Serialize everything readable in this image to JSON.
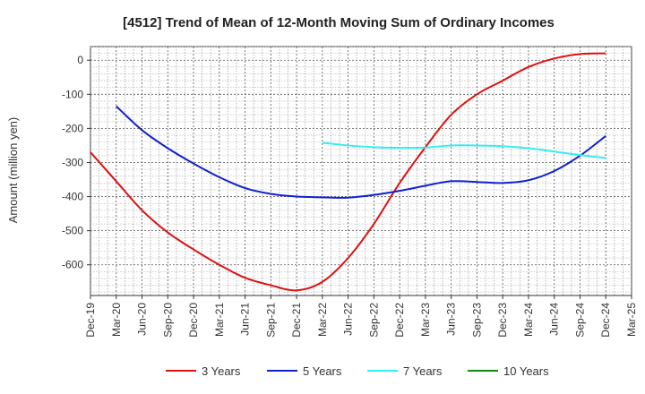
{
  "chart_data": {
    "type": "line",
    "title": "[4512]  Trend of Mean of 12-Month Moving Sum of Ordinary Incomes",
    "xlabel": "",
    "ylabel": "Amount (million yen)",
    "ylim": [
      -690,
      40
    ],
    "yticks": [
      0,
      -100,
      -200,
      -300,
      -400,
      -500,
      -600
    ],
    "categories": [
      "Dec-19",
      "Mar-20",
      "Jun-20",
      "Sep-20",
      "Dec-20",
      "Mar-21",
      "Jun-21",
      "Sep-21",
      "Dec-21",
      "Mar-22",
      "Jun-22",
      "Sep-22",
      "Dec-22",
      "Mar-23",
      "Jun-23",
      "Sep-23",
      "Dec-23",
      "Mar-24",
      "Jun-24",
      "Sep-24",
      "Dec-24",
      "Mar-25"
    ],
    "grid": true,
    "legend_position": "bottom",
    "series": [
      {
        "name": "3 Years",
        "color": "#dd1111",
        "values": [
          -270,
          -355,
          -440,
          -505,
          -555,
          -600,
          -638,
          -660,
          -675,
          -650,
          -580,
          -480,
          -360,
          -255,
          -160,
          -100,
          -60,
          -20,
          5,
          18,
          20,
          null
        ]
      },
      {
        "name": "5 Years",
        "color": "#1122cc",
        "values": [
          null,
          -135,
          -205,
          -258,
          -303,
          -343,
          -375,
          -392,
          -400,
          -402,
          -403,
          -395,
          -383,
          -368,
          -355,
          -357,
          -360,
          -352,
          -325,
          -280,
          -222,
          null
        ]
      },
      {
        "name": "7 Years",
        "color": "#33eeee",
        "values": [
          null,
          null,
          null,
          null,
          null,
          null,
          null,
          null,
          null,
          -242,
          -250,
          -255,
          -257,
          -256,
          -250,
          -250,
          -252,
          -258,
          -268,
          -278,
          -287,
          null
        ]
      },
      {
        "name": "10 Years",
        "color": "#118811",
        "values": [
          null,
          null,
          null,
          null,
          null,
          null,
          null,
          null,
          null,
          null,
          null,
          null,
          null,
          null,
          null,
          null,
          null,
          null,
          null,
          null,
          null,
          null
        ]
      }
    ]
  }
}
